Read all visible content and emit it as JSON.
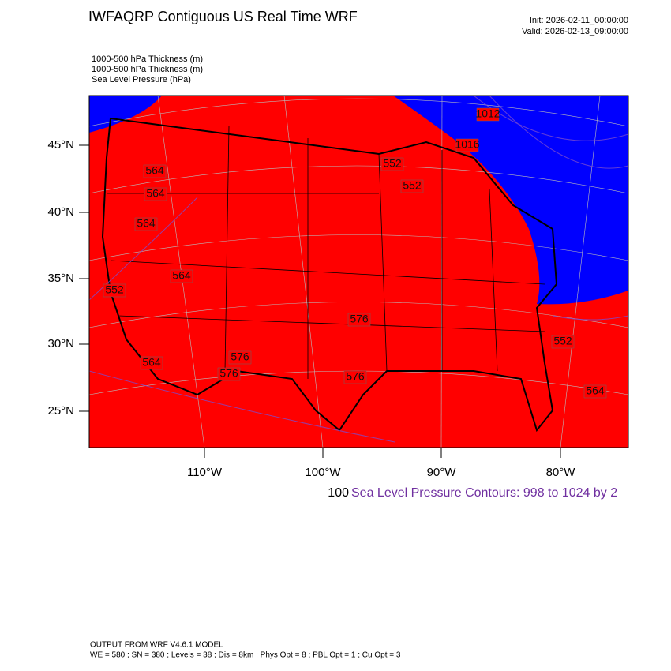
{
  "header": {
    "title": "IWFAQRP Contiguous US Real Time WRF",
    "init": "Init: 2026-02-11_00:00:00",
    "valid": "Valid: 2026-02-13_09:00:00"
  },
  "fields": [
    "1000-500 hPa Thickness   (m)",
    "1000-500 hPa Thickness   (m)",
    "Sea Level Pressure   (hPa)"
  ],
  "map": {
    "lat_labels": [
      "45°N",
      "40°N",
      "35°N",
      "30°N",
      "25°N"
    ],
    "lon_labels": [
      "110°W",
      "100°W",
      "90°W",
      "80°W"
    ],
    "contour_labels": [
      "552",
      "552",
      "564",
      "564",
      "564",
      "564",
      "552",
      "576",
      "576",
      "576",
      "576",
      "552",
      "564",
      "1012",
      "1016",
      "564"
    ]
  },
  "legend": {
    "interval": "100",
    "contours": "Sea Level Pressure Contours: 998 to 1024 by 2"
  },
  "footer": [
    "OUTPUT FROM WRF V4.6.1 MODEL",
    "WE = 580 ; SN = 380 ; Levels = 38 ; Dis = 8km ; Phys Opt = 8 ; PBL Opt = 1 ; Cu Opt = 3"
  ]
}
